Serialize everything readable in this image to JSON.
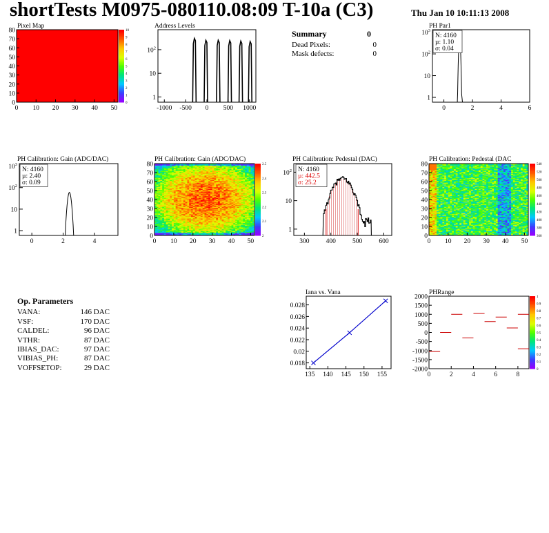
{
  "header": {
    "title": "shortTests M0975-080110.08:09 T-10a (C3)",
    "date": "Thu Jan 10 10:11:13 2008"
  },
  "summary": {
    "title": "Summary",
    "title_value": "0",
    "rows": [
      {
        "label": "Dead Pixels:",
        "value": "0"
      },
      {
        "label": "Mask defects:",
        "value": "0"
      }
    ]
  },
  "op_parameters": {
    "title": "Op. Parameters",
    "rows": [
      {
        "label": "VANA:",
        "value": "146 DAC"
      },
      {
        "label": "VSF:",
        "value": "170 DAC"
      },
      {
        "label": "CALDEL:",
        "value": "96 DAC"
      },
      {
        "label": "VTHR:",
        "value": "87 DAC"
      },
      {
        "label": "IBIAS_DAC:",
        "value": "97 DAC"
      },
      {
        "label": "VIBIAS_PH:",
        "value": "87 DAC"
      },
      {
        "label": "VOFFSETOP:",
        "value": "29 DAC"
      }
    ]
  },
  "colors": {
    "frame": "#000000",
    "fit_line": "#0000cc",
    "stats_red": "#dd0000",
    "hatch": "#cc0000",
    "pixel_map_fill": "#ff0000"
  },
  "chart_data": [
    {
      "id": "pixel_map",
      "type": "heatmap",
      "title": "Pixel Map",
      "xticks": [
        "0",
        "10",
        "20",
        "30",
        "40",
        "50"
      ],
      "yticks": [
        "0",
        "10",
        "20",
        "30",
        "40",
        "50",
        "60",
        "70",
        "80"
      ],
      "xlim": [
        0,
        52
      ],
      "ylim": [
        0,
        80
      ],
      "uniform_value": 10,
      "colorbar_ticks": [
        "0",
        "1",
        "2",
        "3",
        "4",
        "5",
        "6",
        "7",
        "8",
        "9",
        "10"
      ]
    },
    {
      "id": "address_levels",
      "type": "bar",
      "title": "Address Levels",
      "log_y": true,
      "xlim": [
        -1150,
        1150
      ],
      "ylim_log": [
        0.6,
        700
      ],
      "xticks": [
        "-1000",
        "-500",
        "0",
        "500",
        "1000"
      ],
      "yticks": [
        "1",
        "10",
        "10^2"
      ],
      "peaks": [
        {
          "x": -270,
          "v": 300
        },
        {
          "x": 0,
          "v": 250
        },
        {
          "x": 290,
          "v": 250
        },
        {
          "x": 560,
          "v": 240
        },
        {
          "x": 820,
          "v": 230
        },
        {
          "x": 1040,
          "v": 220
        }
      ]
    },
    {
      "id": "ph_par1",
      "type": "bar",
      "title": "PH Par1",
      "log_y": true,
      "xlim": [
        -0.8,
        6
      ],
      "ylim_log": [
        0.6,
        1300
      ],
      "xticks": [
        "0",
        "2",
        "4",
        "6"
      ],
      "yticks": [
        "1",
        "10",
        "10^2",
        "10^3"
      ],
      "stats": [
        "N: 4160",
        "µ: 1.10",
        "σ: 0.04"
      ],
      "mean": 1.1,
      "sigma": 0.04,
      "peak": 650
    },
    {
      "id": "ph_gain_hist",
      "type": "bar",
      "title": "PH Calibration: Gain (ADC/DAC)",
      "log_y": true,
      "xlim": [
        -0.8,
        5.5
      ],
      "ylim_log": [
        0.6,
        1300
      ],
      "xticks": [
        "0",
        "2",
        "4"
      ],
      "yticks": [
        "1",
        "10",
        "10^2",
        "10^3"
      ],
      "stats": [
        "N: 4160",
        "µ: 2.40",
        "σ: 0.09"
      ],
      "mean": 2.4,
      "sigma": 0.09,
      "peak": 60
    },
    {
      "id": "ph_gain_map",
      "type": "heatmap",
      "title": "PH Calibration: Gain (ADC/DAC)",
      "xticks": [
        "0",
        "10",
        "20",
        "30",
        "40",
        "50"
      ],
      "yticks": [
        "0",
        "10",
        "20",
        "30",
        "40",
        "50",
        "60",
        "70",
        "80"
      ],
      "xlim": [
        0,
        52
      ],
      "ylim": [
        0,
        80
      ],
      "colorbar_ticks": [
        "2",
        "2.1",
        "2.2",
        "2.3",
        "2.4",
        "2.5"
      ]
    },
    {
      "id": "ph_pedestal_hist",
      "type": "bar",
      "title": "PH Calibration: Pedestal (DAC)",
      "log_y": true,
      "xlim": [
        260,
        630
      ],
      "ylim_log": [
        0.6,
        200
      ],
      "xticks": [
        "300",
        "400",
        "500",
        "600"
      ],
      "yticks": [
        "1",
        "10",
        "10^2"
      ],
      "stats": [
        "N: 4160",
        "µ: 442.5",
        "σ: 25.2"
      ],
      "mean": 442.5,
      "sigma": 25.2,
      "peak": 60
    },
    {
      "id": "ph_pedestal_map",
      "type": "heatmap",
      "title": "PH Calibration: Pedestal (DAC",
      "xticks": [
        "0",
        "10",
        "20",
        "30",
        "40",
        "50"
      ],
      "yticks": [
        "0",
        "10",
        "20",
        "30",
        "40",
        "50",
        "60",
        "70",
        "80"
      ],
      "xlim": [
        0,
        52
      ],
      "ylim": [
        0,
        80
      ],
      "colorbar_ticks": [
        "360",
        "380",
        "400",
        "420",
        "440",
        "460",
        "480",
        "500",
        "520",
        "540"
      ]
    },
    {
      "id": "iana_vana",
      "type": "line",
      "title": "Iana vs. Vana",
      "xlim": [
        134,
        157.5
      ],
      "ylim": [
        0.017,
        0.0295
      ],
      "xticks": [
        "135",
        "140",
        "145",
        "150",
        "155"
      ],
      "yticks": [
        "0.018",
        "0.02",
        "0.022",
        "0.024",
        "0.026",
        "0.028"
      ],
      "x": [
        136,
        146,
        156
      ],
      "y": [
        0.018,
        0.0232,
        0.0287
      ]
    },
    {
      "id": "ph_range",
      "type": "scatter",
      "title": "PHRange",
      "xlim": [
        0,
        9
      ],
      "ylim": [
        -2000,
        2000
      ],
      "xticks": [
        "0",
        "2",
        "4",
        "6",
        "8"
      ],
      "yticks": [
        "2000",
        "1500",
        "1000",
        "500",
        "0",
        "-500",
        "-1000",
        "-1500",
        "-2000"
      ],
      "colorbar_ticks": [
        "0",
        "0.1",
        "0.2",
        "0.3",
        "0.4",
        "0.5",
        "0.6",
        "0.7",
        "0.8",
        "0.9",
        "1"
      ],
      "segments": [
        {
          "x": 0.5,
          "y": -1050
        },
        {
          "x": 1.5,
          "y": 0
        },
        {
          "x": 2.5,
          "y": 1000
        },
        {
          "x": 3.5,
          "y": -300
        },
        {
          "x": 4.5,
          "y": 1050
        },
        {
          "x": 5.5,
          "y": 600
        },
        {
          "x": 6.5,
          "y": 850
        },
        {
          "x": 7.5,
          "y": 250
        },
        {
          "x": 8.5,
          "y": 1000
        },
        {
          "x": 8.5,
          "y": -900
        }
      ]
    }
  ]
}
